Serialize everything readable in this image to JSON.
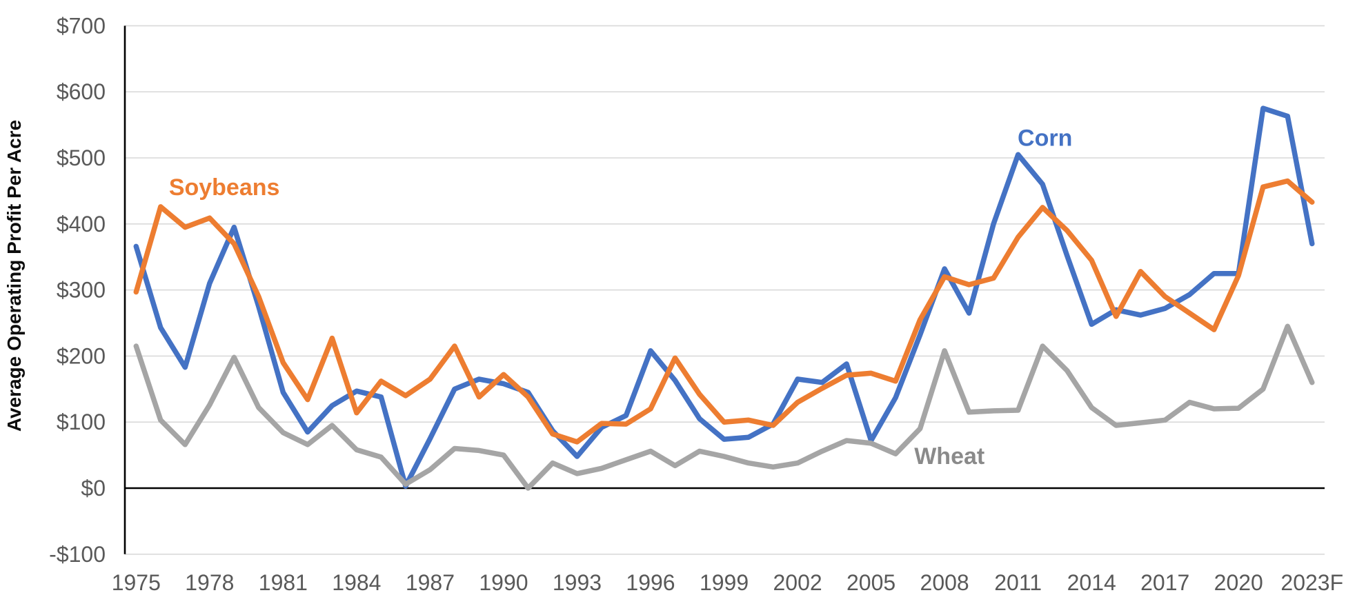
{
  "chart_data": {
    "type": "line",
    "title": "",
    "xlabel": "",
    "ylabel": "Average Operating Profit Per Acre",
    "ylim": [
      -100,
      700
    ],
    "y_gridline_step": 100,
    "grid": "horizontal",
    "legend": "inline-series-labels",
    "background_color": "#ffffff",
    "gridline_color": "#d9d9d9",
    "zero_line_color": "#000000",
    "tick_label_color": "#595959",
    "y_ticks": [
      {
        "value": 700,
        "label": "$700"
      },
      {
        "value": 600,
        "label": "$600"
      },
      {
        "value": 500,
        "label": "$500"
      },
      {
        "value": 400,
        "label": "$400"
      },
      {
        "value": 300,
        "label": "$300"
      },
      {
        "value": 200,
        "label": "$200"
      },
      {
        "value": 100,
        "label": "$100"
      },
      {
        "value": 0,
        "label": "$0"
      },
      {
        "value": -100,
        "label": "-$100"
      }
    ],
    "x_years": [
      1975,
      1976,
      1977,
      1978,
      1979,
      1980,
      1981,
      1982,
      1983,
      1984,
      1985,
      1986,
      1987,
      1988,
      1989,
      1990,
      1991,
      1992,
      1993,
      1994,
      1995,
      1996,
      1997,
      1998,
      1999,
      2000,
      2001,
      2002,
      2003,
      2004,
      2005,
      2006,
      2007,
      2008,
      2009,
      2010,
      2011,
      2012,
      2013,
      2014,
      2015,
      2016,
      2017,
      2018,
      2019,
      2020,
      2021,
      2022,
      2023
    ],
    "x_ticks": [
      {
        "year": 1975,
        "label": "1975"
      },
      {
        "year": 1978,
        "label": "1978"
      },
      {
        "year": 1981,
        "label": "1981"
      },
      {
        "year": 1984,
        "label": "1984"
      },
      {
        "year": 1987,
        "label": "1987"
      },
      {
        "year": 1990,
        "label": "1990"
      },
      {
        "year": 1993,
        "label": "1993"
      },
      {
        "year": 1996,
        "label": "1996"
      },
      {
        "year": 1999,
        "label": "1999"
      },
      {
        "year": 2002,
        "label": "2002"
      },
      {
        "year": 2005,
        "label": "2005"
      },
      {
        "year": 2008,
        "label": "2008"
      },
      {
        "year": 2011,
        "label": "2011"
      },
      {
        "year": 2014,
        "label": "2014"
      },
      {
        "year": 2017,
        "label": "2017"
      },
      {
        "year": 2020,
        "label": "2020"
      },
      {
        "year": 2023,
        "label": "2023F"
      }
    ],
    "series": [
      {
        "name": "Corn",
        "label": "Corn",
        "color": "#4472C4",
        "label_color": "#4472C4",
        "label_anchor": {
          "year": 2012.1,
          "value": 530
        },
        "values": [
          366,
          243,
          183,
          310,
          395,
          275,
          145,
          85,
          125,
          147,
          138,
          3,
          75,
          150,
          165,
          158,
          145,
          87,
          48,
          92,
          110,
          208,
          163,
          105,
          74,
          77,
          97,
          165,
          160,
          188,
          72,
          137,
          232,
          332,
          265,
          400,
          505,
          460,
          352,
          248,
          270,
          262,
          272,
          293,
          325,
          325,
          575,
          563,
          370
        ]
      },
      {
        "name": "Soybeans",
        "label": "Soybeans",
        "color": "#ED7D31",
        "label_color": "#ED7D31",
        "label_anchor": {
          "year": 1978.6,
          "value": 455
        },
        "values": [
          297,
          426,
          395,
          409,
          370,
          290,
          190,
          134,
          227,
          114,
          162,
          140,
          165,
          215,
          138,
          172,
          138,
          82,
          70,
          98,
          97,
          120,
          197,
          142,
          100,
          103,
          95,
          130,
          151,
          171,
          174,
          162,
          255,
          320,
          308,
          318,
          380,
          425,
          390,
          345,
          260,
          328,
          290,
          265,
          240,
          322,
          456,
          465,
          433
        ]
      },
      {
        "name": "Wheat",
        "label": "Wheat",
        "color": "#A5A5A5",
        "label_color": "#8a8a8a",
        "label_anchor": {
          "year": 2008.2,
          "value": 48
        },
        "values": [
          215,
          103,
          66,
          126,
          198,
          122,
          84,
          66,
          95,
          58,
          47,
          6,
          28,
          60,
          57,
          50,
          0,
          38,
          22,
          30,
          43,
          56,
          34,
          56,
          48,
          38,
          32,
          38,
          56,
          72,
          68,
          52,
          90,
          208,
          115,
          117,
          118,
          215,
          178,
          122,
          95,
          99,
          103,
          130,
          120,
          121,
          150,
          245,
          160
        ]
      }
    ]
  }
}
